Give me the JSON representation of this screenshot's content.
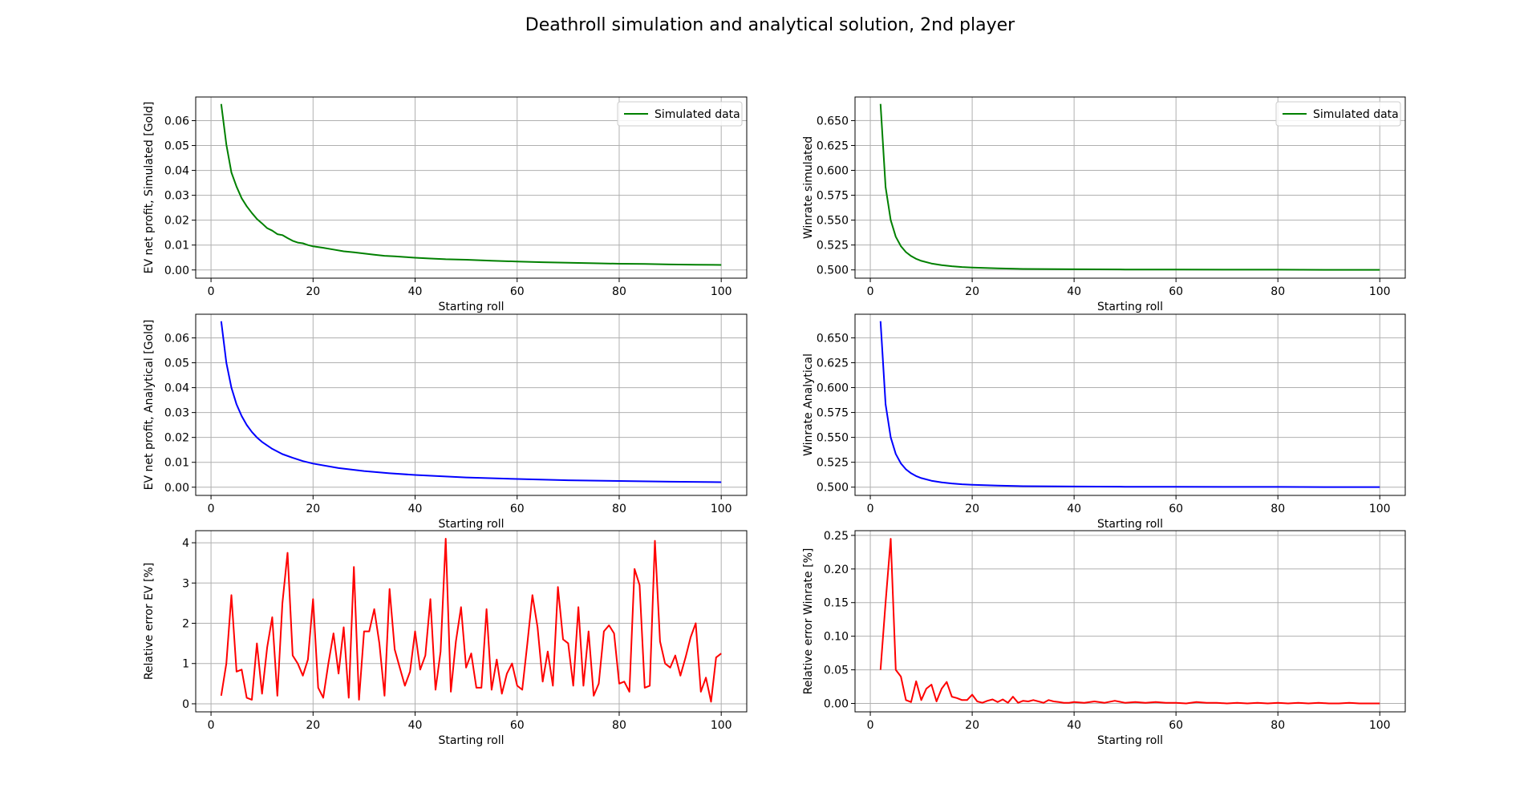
{
  "figure": {
    "title": "Deathroll simulation and analytical solution, 2nd player"
  },
  "chart_data": [
    {
      "id": "ev-sim",
      "type": "line",
      "xlabel": "Starting roll",
      "ylabel": "EV net profit, Simulated [Gold]",
      "xlim": [
        -3,
        105
      ],
      "ylim": [
        -0.0033,
        0.0695
      ],
      "xticks": [
        0,
        20,
        40,
        60,
        80,
        100
      ],
      "yticks": [
        0.0,
        0.01,
        0.02,
        0.03,
        0.04,
        0.05,
        0.06
      ],
      "ytick_labels": [
        "0.00",
        "0.01",
        "0.02",
        "0.03",
        "0.04",
        "0.05",
        "0.06"
      ],
      "grid": true,
      "legend": "upper right",
      "series": [
        {
          "name": "Simulated data",
          "color": "#008000",
          "x": [
            2,
            3,
            4,
            5,
            6,
            7,
            8,
            9,
            10,
            11,
            12,
            13,
            14,
            15,
            16,
            17,
            18,
            19,
            20,
            22,
            24,
            26,
            28,
            30,
            32,
            34,
            36,
            38,
            40,
            43,
            46,
            50,
            55,
            60,
            65,
            70,
            75,
            80,
            85,
            90,
            95,
            100
          ],
          "y": [
            0.0667,
            0.0504,
            0.0392,
            0.0335,
            0.0288,
            0.0256,
            0.0229,
            0.0205,
            0.0187,
            0.0168,
            0.0158,
            0.0144,
            0.014,
            0.0128,
            0.0117,
            0.011,
            0.0107,
            0.01,
            0.0095,
            0.0089,
            0.0082,
            0.0075,
            0.0071,
            0.0066,
            0.0061,
            0.0057,
            0.0055,
            0.0052,
            0.0049,
            0.0046,
            0.0043,
            0.0041,
            0.0037,
            0.0034,
            0.0031,
            0.0029,
            0.0027,
            0.0025,
            0.0024,
            0.0022,
            0.0021,
            0.002
          ]
        }
      ]
    },
    {
      "id": "wr-sim",
      "type": "line",
      "xlabel": "Starting roll",
      "ylabel": "Winrate simulated",
      "xlim": [
        -3,
        105
      ],
      "ylim": [
        0.4917,
        0.6737
      ],
      "xticks": [
        0,
        20,
        40,
        60,
        80,
        100
      ],
      "yticks": [
        0.5,
        0.525,
        0.55,
        0.575,
        0.6,
        0.625,
        0.65
      ],
      "ytick_labels": [
        "0.500",
        "0.525",
        "0.550",
        "0.575",
        "0.600",
        "0.625",
        "0.650"
      ],
      "grid": true,
      "legend": "upper right",
      "series": [
        {
          "name": "Simulated data",
          "color": "#008000",
          "x": [
            2,
            3,
            4,
            5,
            6,
            7,
            8,
            9,
            10,
            12,
            14,
            16,
            18,
            20,
            25,
            30,
            40,
            50,
            60,
            70,
            80,
            90,
            100
          ],
          "y": [
            0.6667,
            0.5833,
            0.55,
            0.5333,
            0.5238,
            0.5179,
            0.5139,
            0.5111,
            0.5091,
            0.5064,
            0.5048,
            0.5037,
            0.5029,
            0.5024,
            0.5015,
            0.501,
            0.5006,
            0.5004,
            0.5003,
            0.5002,
            0.5002,
            0.5001,
            0.5001
          ]
        }
      ]
    },
    {
      "id": "ev-ana",
      "type": "line",
      "xlabel": "Starting roll",
      "ylabel": "EV net profit, Analytical [Gold]",
      "xlim": [
        -3,
        105
      ],
      "ylim": [
        -0.0033,
        0.0695
      ],
      "xticks": [
        0,
        20,
        40,
        60,
        80,
        100
      ],
      "yticks": [
        0.0,
        0.01,
        0.02,
        0.03,
        0.04,
        0.05,
        0.06
      ],
      "ytick_labels": [
        "0.00",
        "0.01",
        "0.02",
        "0.03",
        "0.04",
        "0.05",
        "0.06"
      ],
      "grid": true,
      "series": [
        {
          "color": "#0000ff",
          "x": [
            2,
            3,
            4,
            5,
            6,
            7,
            8,
            9,
            10,
            12,
            14,
            16,
            18,
            20,
            25,
            30,
            35,
            40,
            50,
            60,
            70,
            80,
            90,
            100
          ],
          "y": [
            0.0667,
            0.05,
            0.04,
            0.0333,
            0.0286,
            0.025,
            0.0222,
            0.02,
            0.0182,
            0.0154,
            0.0133,
            0.0118,
            0.0105,
            0.0095,
            0.0077,
            0.0065,
            0.0056,
            0.0049,
            0.0039,
            0.0033,
            0.0028,
            0.0025,
            0.0022,
            0.002
          ]
        }
      ]
    },
    {
      "id": "wr-ana",
      "type": "line",
      "xlabel": "Starting roll",
      "ylabel": "Winrate Analytical",
      "xlim": [
        -3,
        105
      ],
      "ylim": [
        0.4917,
        0.6737
      ],
      "xticks": [
        0,
        20,
        40,
        60,
        80,
        100
      ],
      "yticks": [
        0.5,
        0.525,
        0.55,
        0.575,
        0.6,
        0.625,
        0.65
      ],
      "ytick_labels": [
        "0.500",
        "0.525",
        "0.550",
        "0.575",
        "0.600",
        "0.625",
        "0.650"
      ],
      "grid": true,
      "series": [
        {
          "color": "#0000ff",
          "x": [
            2,
            3,
            4,
            5,
            6,
            7,
            8,
            9,
            10,
            12,
            14,
            16,
            18,
            20,
            25,
            30,
            40,
            50,
            60,
            70,
            80,
            90,
            100
          ],
          "y": [
            0.6667,
            0.5833,
            0.55,
            0.5333,
            0.5238,
            0.5179,
            0.5139,
            0.5111,
            0.5091,
            0.5064,
            0.5048,
            0.5037,
            0.5029,
            0.5024,
            0.5015,
            0.501,
            0.5006,
            0.5004,
            0.5003,
            0.5002,
            0.5002,
            0.5001,
            0.5001
          ]
        }
      ]
    },
    {
      "id": "ev-err",
      "type": "line",
      "xlabel": "Starting roll",
      "ylabel": "Relative error EV [%]",
      "xlim": [
        -3,
        105
      ],
      "ylim": [
        -0.2,
        4.3
      ],
      "xticks": [
        0,
        20,
        40,
        60,
        80,
        100
      ],
      "yticks": [
        0,
        1,
        2,
        3,
        4
      ],
      "ytick_labels": [
        "0",
        "1",
        "2",
        "3",
        "4"
      ],
      "grid": true,
      "series": [
        {
          "color": "#ff0000",
          "x": [
            2,
            3,
            4,
            5,
            6,
            7,
            8,
            9,
            10,
            11,
            12,
            13,
            14,
            15,
            16,
            17,
            18,
            19,
            20,
            21,
            22,
            23,
            24,
            25,
            26,
            27,
            28,
            29,
            30,
            31,
            32,
            33,
            34,
            35,
            36,
            37,
            38,
            39,
            40,
            41,
            42,
            43,
            44,
            45,
            46,
            47,
            48,
            49,
            50,
            51,
            52,
            53,
            54,
            55,
            56,
            57,
            58,
            59,
            60,
            61,
            62,
            63,
            64,
            65,
            66,
            67,
            68,
            69,
            70,
            71,
            72,
            73,
            74,
            75,
            76,
            77,
            78,
            79,
            80,
            81,
            82,
            83,
            84,
            85,
            86,
            87,
            88,
            89,
            90,
            91,
            92,
            93,
            94,
            95,
            96,
            97,
            98,
            99,
            100
          ],
          "y": [
            0.2,
            1.0,
            2.7,
            0.8,
            0.85,
            0.15,
            0.1,
            1.5,
            0.25,
            1.4,
            2.15,
            0.2,
            2.5,
            3.75,
            1.2,
            1.0,
            0.7,
            1.1,
            2.6,
            0.4,
            0.15,
            1.0,
            1.75,
            0.75,
            1.9,
            0.15,
            3.4,
            0.1,
            1.8,
            1.8,
            2.35,
            1.5,
            0.2,
            2.85,
            1.35,
            0.9,
            0.45,
            0.8,
            1.8,
            0.85,
            1.2,
            2.6,
            0.35,
            1.3,
            4.1,
            0.3,
            1.55,
            2.4,
            0.9,
            1.25,
            0.4,
            0.4,
            2.35,
            0.35,
            1.1,
            0.25,
            0.75,
            1.0,
            0.45,
            0.35,
            1.5,
            2.7,
            1.9,
            0.55,
            1.3,
            0.45,
            2.9,
            1.6,
            1.5,
            0.45,
            2.4,
            0.45,
            1.8,
            0.2,
            0.5,
            1.8,
            1.95,
            1.75,
            0.5,
            0.55,
            0.3,
            3.35,
            2.95,
            0.4,
            0.45,
            4.05,
            1.55,
            1.0,
            0.9,
            1.2,
            0.7,
            1.15,
            1.65,
            2.0,
            0.3,
            0.65,
            0.05,
            1.15,
            1.25
          ]
        }
      ]
    },
    {
      "id": "wr-err",
      "type": "line",
      "xlabel": "Starting roll",
      "ylabel": "Relative error Winrate [%]",
      "xlim": [
        -3,
        105
      ],
      "ylim": [
        -0.0125,
        0.257
      ],
      "xticks": [
        0,
        20,
        40,
        60,
        80,
        100
      ],
      "yticks": [
        0.0,
        0.05,
        0.1,
        0.15,
        0.2,
        0.25
      ],
      "ytick_labels": [
        "0.00",
        "0.05",
        "0.10",
        "0.15",
        "0.20",
        "0.25"
      ],
      "grid": true,
      "series": [
        {
          "color": "#ff0000",
          "x": [
            2,
            3,
            4,
            5,
            6,
            7,
            8,
            9,
            10,
            11,
            12,
            13,
            14,
            15,
            16,
            17,
            18,
            19,
            20,
            21,
            22,
            23,
            24,
            25,
            26,
            27,
            28,
            29,
            30,
            31,
            32,
            33,
            34,
            35,
            36,
            37,
            38,
            39,
            40,
            42,
            44,
            46,
            48,
            50,
            52,
            54,
            56,
            58,
            60,
            62,
            64,
            66,
            68,
            70,
            72,
            74,
            76,
            78,
            80,
            82,
            84,
            86,
            88,
            90,
            92,
            94,
            96,
            98,
            100
          ],
          "y": [
            0.05,
            0.15,
            0.245,
            0.05,
            0.04,
            0.005,
            0.002,
            0.033,
            0.005,
            0.022,
            0.028,
            0.003,
            0.022,
            0.032,
            0.01,
            0.008,
            0.005,
            0.005,
            0.013,
            0.003,
            0.001,
            0.004,
            0.006,
            0.002,
            0.006,
            0.001,
            0.01,
            0.001,
            0.004,
            0.003,
            0.005,
            0.003,
            0.001,
            0.005,
            0.003,
            0.002,
            0.001,
            0.001,
            0.002,
            0.001,
            0.003,
            0.001,
            0.004,
            0.001,
            0.002,
            0.001,
            0.002,
            0.001,
            0.001,
            0.0,
            0.002,
            0.001,
            0.001,
            0.0,
            0.001,
            0.0,
            0.001,
            0.0,
            0.001,
            0.0,
            0.001,
            0.0,
            0.001,
            0.0,
            0.0,
            0.001,
            0.0,
            0.0,
            0.0
          ]
        }
      ]
    }
  ]
}
